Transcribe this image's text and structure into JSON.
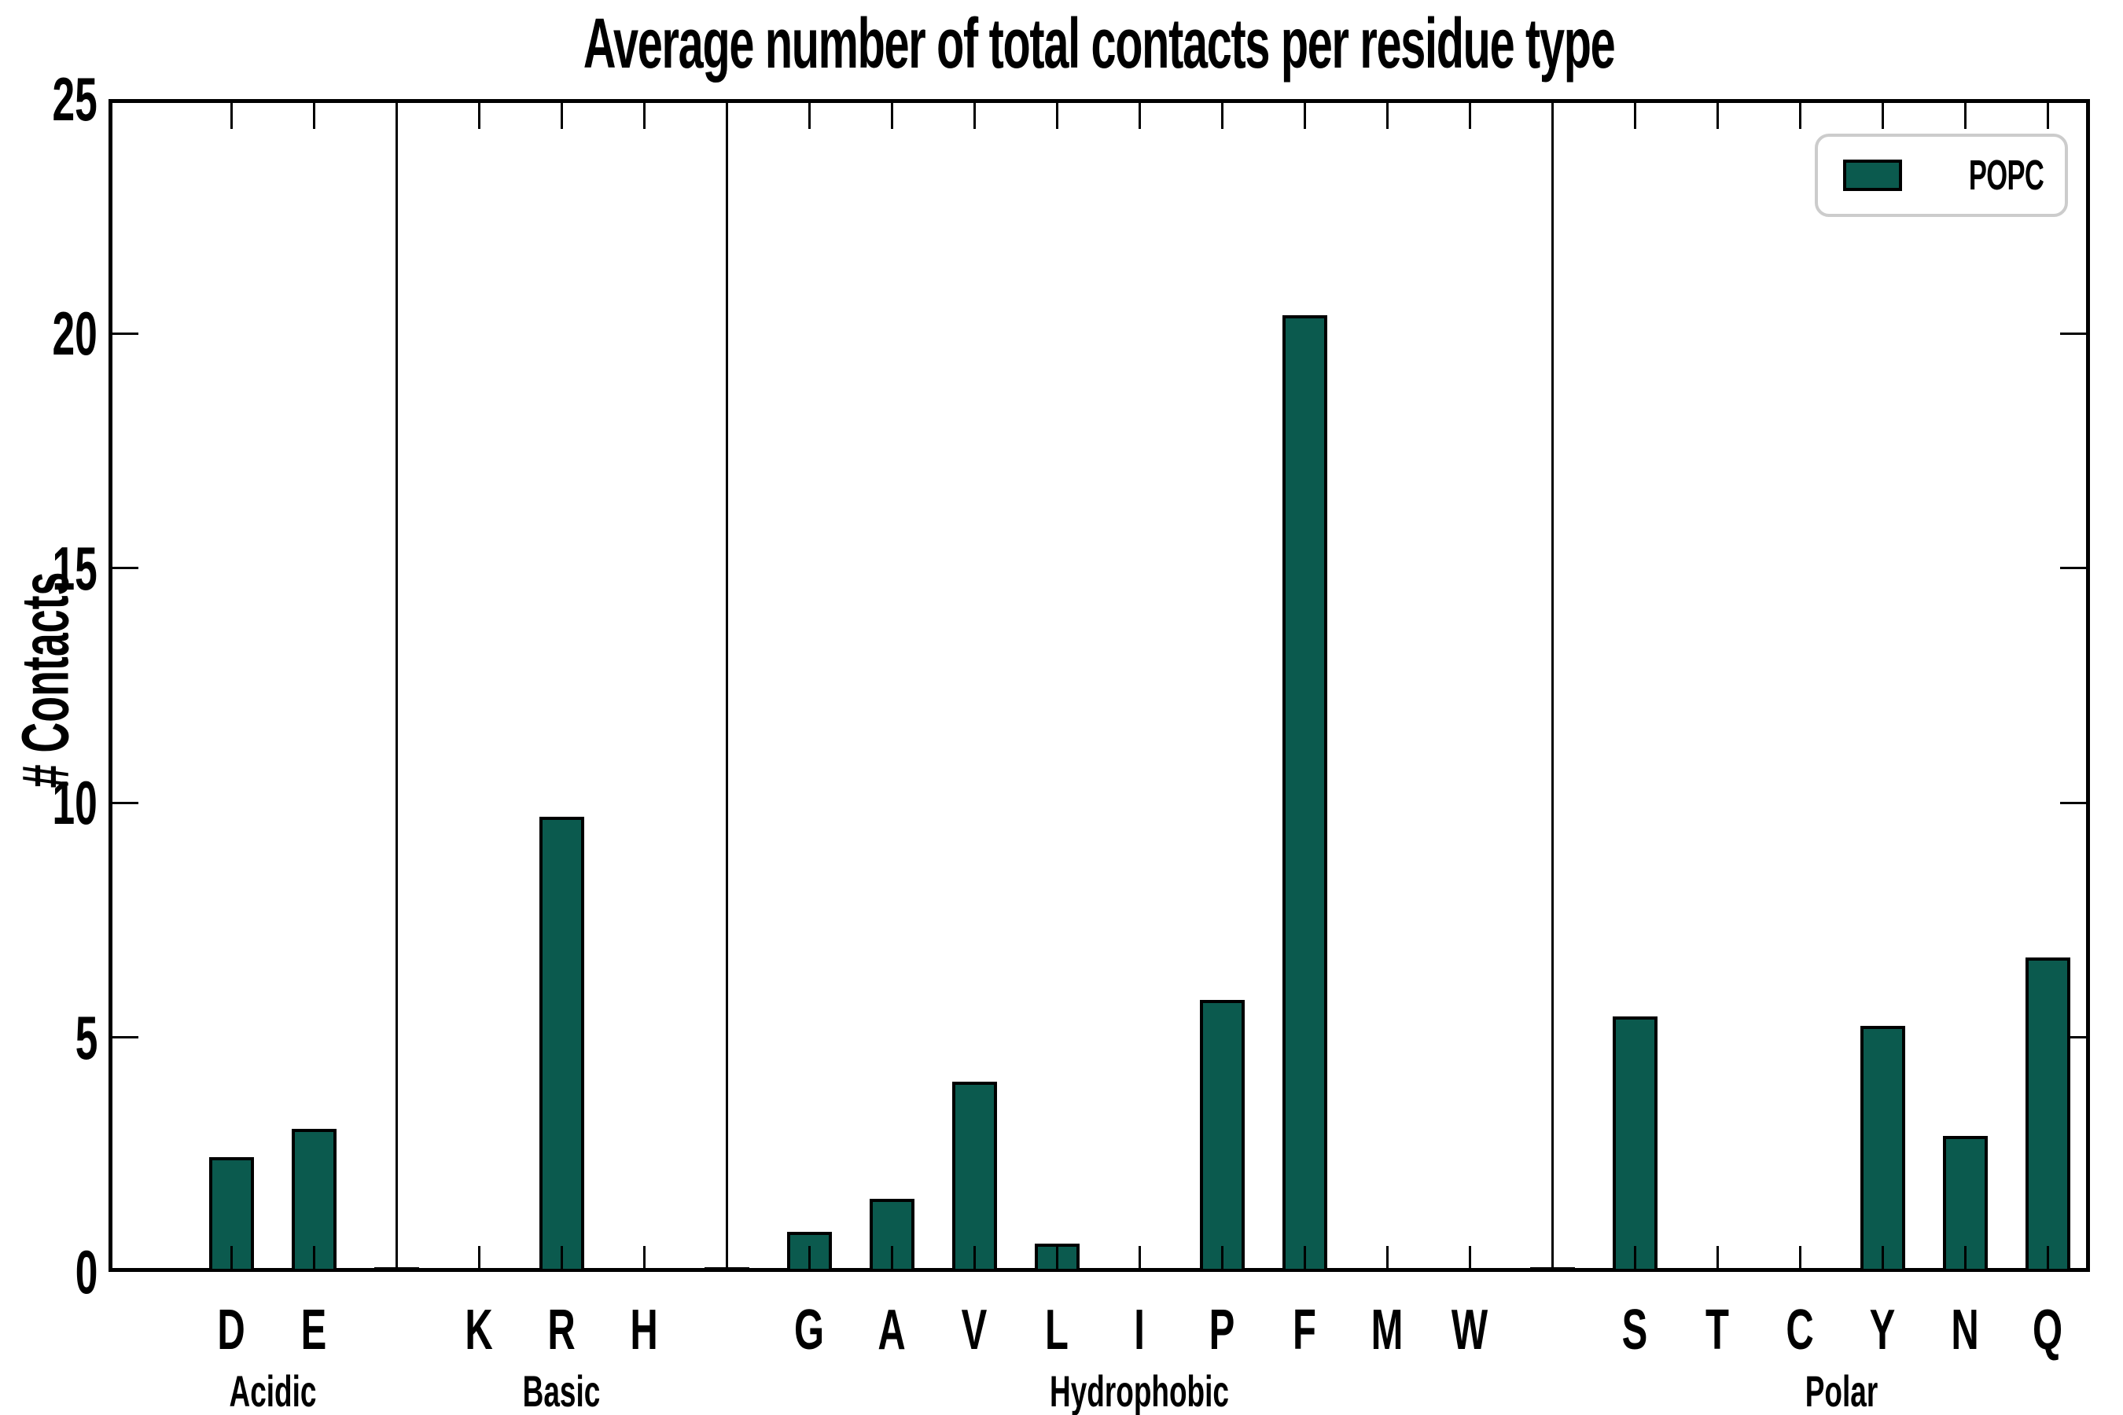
{
  "title": "Average number of total contacts per residue type",
  "ylabel": "# Contacts",
  "legend": {
    "label": "POPC"
  },
  "colors": {
    "bar_fill": "#0B5A4E",
    "bar_edge": "#000000",
    "axis": "#000000",
    "legend_border": "#cccccc",
    "background": "#ffffff"
  },
  "y_axis": {
    "tick_labels": [
      "25",
      "20",
      "15",
      "10",
      "5",
      "0"
    ],
    "tick_values": [
      25,
      20,
      15,
      10,
      5,
      0
    ]
  },
  "chart_data": {
    "type": "bar",
    "title": "Average number of total contacts per residue type",
    "ylabel": "# Contacts",
    "xlabel": "",
    "ylim": [
      0,
      25
    ],
    "grid": false,
    "legend_position": "upper right",
    "series_name": "POPC",
    "bar_color": "#0B5A4E",
    "groups": [
      {
        "name": "Acidic",
        "categories": [
          "D",
          "E"
        ],
        "values": [
          2.45,
          3.05
        ]
      },
      {
        "name": "Basic",
        "categories": [
          "K",
          "R",
          "H"
        ],
        "values": [
          0.05,
          9.7,
          0.05
        ]
      },
      {
        "name": "Hydrophobic",
        "categories": [
          "G",
          "A",
          "V",
          "L",
          "I",
          "P",
          "F",
          "M",
          "W"
        ],
        "values": [
          0.85,
          1.55,
          4.05,
          0.6,
          0.05,
          5.8,
          20.4,
          0.05,
          0.05
        ]
      },
      {
        "name": "Polar",
        "categories": [
          "S",
          "T",
          "C",
          "Y",
          "N",
          "Q"
        ],
        "values": [
          5.45,
          0.05,
          0.05,
          5.25,
          2.9,
          6.7
        ]
      }
    ]
  }
}
